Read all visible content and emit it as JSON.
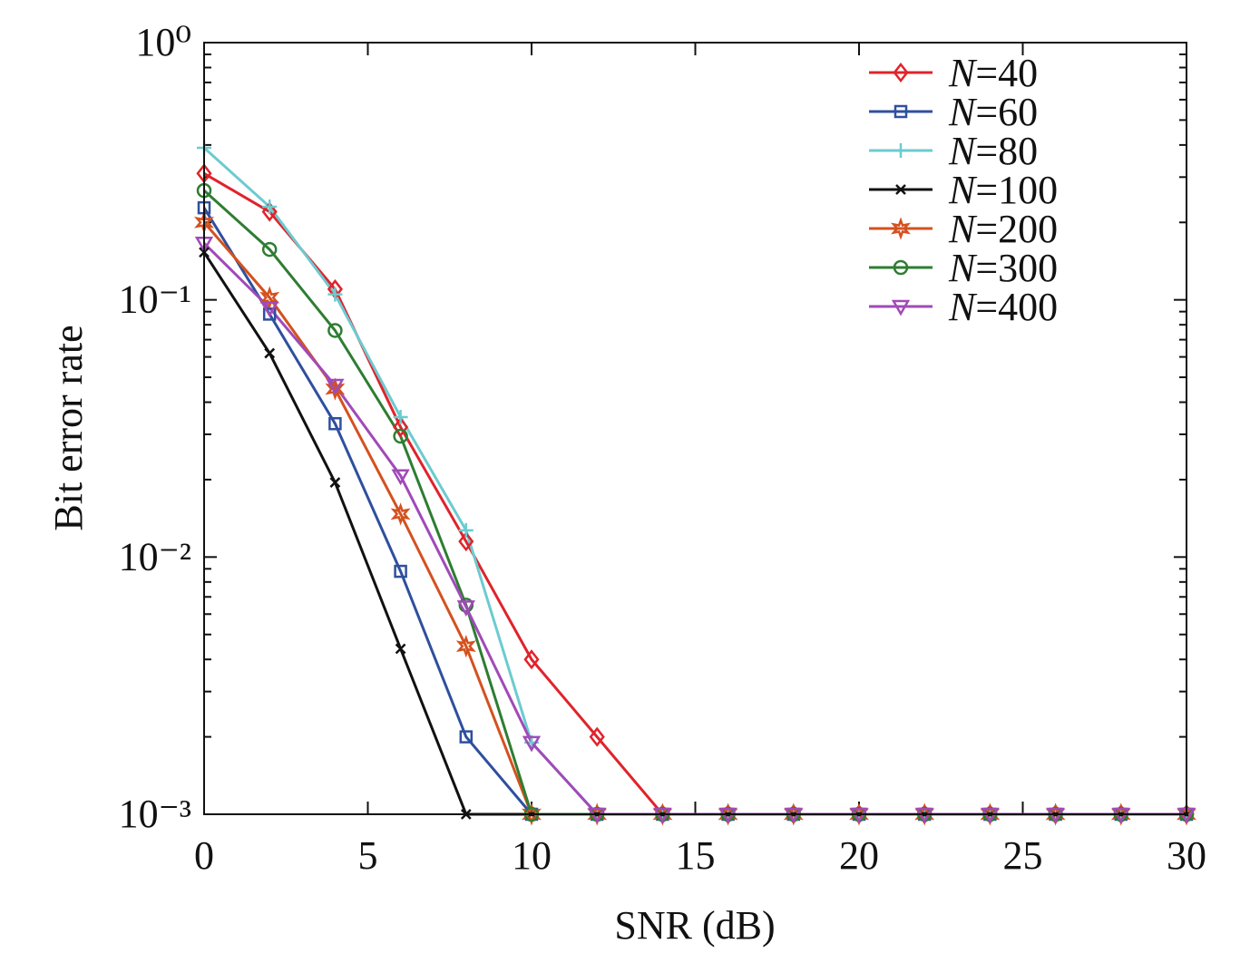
{
  "chart_data": {
    "type": "line",
    "x_label": "SNR (dB)",
    "y_label": "Bit error rate",
    "log_y": true,
    "legend_position": "upper right",
    "x": [
      0,
      2,
      4,
      6,
      8,
      10,
      12,
      14,
      16,
      18,
      20,
      22,
      24,
      26,
      28,
      30
    ],
    "xlim": [
      0,
      30
    ],
    "xticks": [
      0,
      5,
      10,
      15,
      20,
      25,
      30
    ],
    "ylim": [
      0.001,
      1
    ],
    "yticks": [
      {
        "value": 0.001,
        "label": "10⁻³"
      },
      {
        "value": 0.01,
        "label": "10⁻²"
      },
      {
        "value": 0.1,
        "label": "10⁻¹"
      },
      {
        "value": 1,
        "label": "10⁰"
      }
    ],
    "yminorticks": [
      0.002,
      0.003,
      0.004,
      0.005,
      0.006,
      0.007,
      0.008,
      0.009,
      0.02,
      0.03,
      0.04,
      0.05,
      0.06,
      0.07,
      0.08,
      0.09,
      0.2,
      0.3,
      0.4,
      0.5,
      0.6,
      0.7,
      0.8,
      0.9
    ],
    "series": [
      {
        "name": "N=40",
        "color": "#e0232b",
        "marker": "diamond",
        "values": [
          0.31,
          0.22,
          0.11,
          0.032,
          0.0115,
          0.004,
          0.002,
          0.001,
          0.001,
          0.001,
          0.001,
          0.001,
          0.001,
          0.001,
          0.001,
          0.001
        ]
      },
      {
        "name": "N=60",
        "color": "#2f4f9e",
        "marker": "square",
        "values": [
          0.228,
          0.088,
          0.033,
          0.0088,
          0.002,
          0.001,
          0.001,
          0.001,
          0.001,
          0.001,
          0.001,
          0.001,
          0.001,
          0.001,
          0.001,
          0.001
        ]
      },
      {
        "name": "N=80",
        "color": "#6ccbd0",
        "marker": "plus",
        "values": [
          0.39,
          0.23,
          0.105,
          0.035,
          0.0127,
          0.0019,
          0.001,
          0.001,
          0.001,
          0.001,
          0.001,
          0.001,
          0.001,
          0.001,
          0.001,
          0.001
        ]
      },
      {
        "name": "N=100",
        "color": "#111111",
        "marker": "x",
        "values": [
          0.153,
          0.062,
          0.0195,
          0.0044,
          0.001,
          0.001,
          0.001,
          0.001,
          0.001,
          0.001,
          0.001,
          0.001,
          0.001,
          0.001,
          0.001,
          0.001
        ]
      },
      {
        "name": "N=200",
        "color": "#d4511f",
        "marker": "star",
        "values": [
          0.2,
          0.102,
          0.045,
          0.0147,
          0.0045,
          0.001,
          0.001,
          0.001,
          0.001,
          0.001,
          0.001,
          0.001,
          0.001,
          0.001,
          0.001,
          0.001
        ]
      },
      {
        "name": "N=300",
        "color": "#2e7d32",
        "marker": "circle",
        "values": [
          0.266,
          0.157,
          0.076,
          0.0295,
          0.0065,
          0.001,
          0.001,
          0.001,
          0.001,
          0.001,
          0.001,
          0.001,
          0.001,
          0.001,
          0.001,
          0.001
        ]
      },
      {
        "name": "N=400",
        "color": "#a04ab8",
        "marker": "triangle-down",
        "values": [
          0.166,
          0.093,
          0.0465,
          0.0207,
          0.0064,
          0.0019,
          0.001,
          0.001,
          0.001,
          0.001,
          0.001,
          0.001,
          0.001,
          0.001,
          0.001,
          0.001
        ]
      }
    ]
  }
}
